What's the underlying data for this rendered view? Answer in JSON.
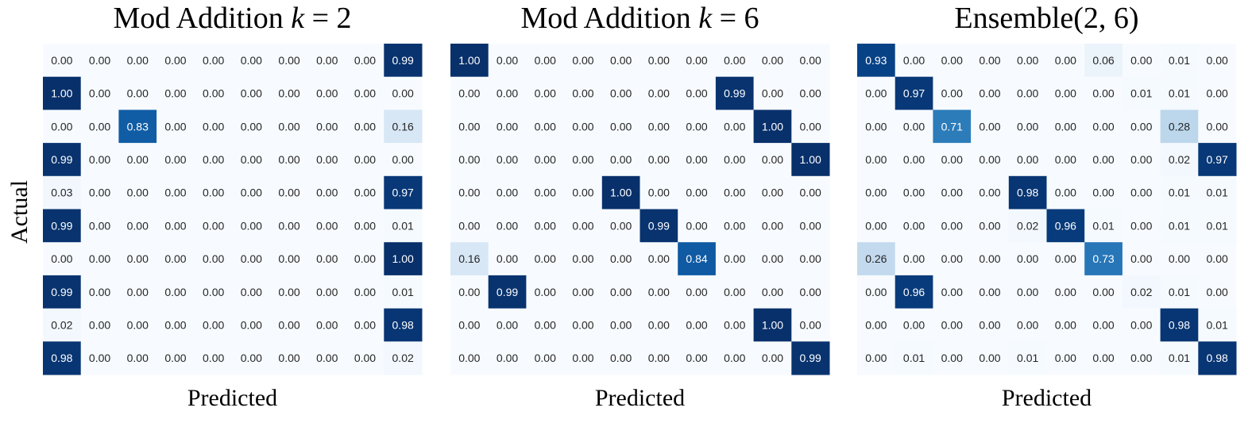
{
  "ylabel": "Actual",
  "colormap": {
    "name": "Blues",
    "low": "#f7fbff",
    "high": "#08306b",
    "text_dark": "#262626",
    "text_light": "#ffffff"
  },
  "chart_data": [
    {
      "type": "heatmap",
      "title": "Mod Addition k = 2",
      "title_plain": "Mod Addition ",
      "title_math": "k",
      "title_math_rest": " = 2",
      "xlabel": "Predicted",
      "ylabel": "Actual",
      "rows": 10,
      "cols": 10,
      "values": [
        [
          "0.00",
          "0.00",
          "0.00",
          "0.00",
          "0.00",
          "0.00",
          "0.00",
          "0.00",
          "0.00",
          "0.99"
        ],
        [
          "1.00",
          "0.00",
          "0.00",
          "0.00",
          "0.00",
          "0.00",
          "0.00",
          "0.00",
          "0.00",
          "0.00"
        ],
        [
          "0.00",
          "0.00",
          "0.83",
          "0.00",
          "0.00",
          "0.00",
          "0.00",
          "0.00",
          "0.00",
          "0.16"
        ],
        [
          "0.99",
          "0.00",
          "0.00",
          "0.00",
          "0.00",
          "0.00",
          "0.00",
          "0.00",
          "0.00",
          "0.00"
        ],
        [
          "0.03",
          "0.00",
          "0.00",
          "0.00",
          "0.00",
          "0.00",
          "0.00",
          "0.00",
          "0.00",
          "0.97"
        ],
        [
          "0.99",
          "0.00",
          "0.00",
          "0.00",
          "0.00",
          "0.00",
          "0.00",
          "0.00",
          "0.00",
          "0.01"
        ],
        [
          "0.00",
          "0.00",
          "0.00",
          "0.00",
          "0.00",
          "0.00",
          "0.00",
          "0.00",
          "0.00",
          "1.00"
        ],
        [
          "0.99",
          "0.00",
          "0.00",
          "0.00",
          "0.00",
          "0.00",
          "0.00",
          "0.00",
          "0.00",
          "0.01"
        ],
        [
          "0.02",
          "0.00",
          "0.00",
          "0.00",
          "0.00",
          "0.00",
          "0.00",
          "0.00",
          "0.00",
          "0.98"
        ],
        [
          "0.98",
          "0.00",
          "0.00",
          "0.00",
          "0.00",
          "0.00",
          "0.00",
          "0.00",
          "0.00",
          "0.02"
        ]
      ]
    },
    {
      "type": "heatmap",
      "title": "Mod Addition k = 6",
      "title_plain": "Mod Addition ",
      "title_math": "k",
      "title_math_rest": " = 6",
      "xlabel": "Predicted",
      "ylabel": "",
      "rows": 10,
      "cols": 10,
      "values": [
        [
          "1.00",
          "0.00",
          "0.00",
          "0.00",
          "0.00",
          "0.00",
          "0.00",
          "0.00",
          "0.00",
          "0.00"
        ],
        [
          "0.00",
          "0.00",
          "0.00",
          "0.00",
          "0.00",
          "0.00",
          "0.00",
          "0.99",
          "0.00",
          "0.00"
        ],
        [
          "0.00",
          "0.00",
          "0.00",
          "0.00",
          "0.00",
          "0.00",
          "0.00",
          "0.00",
          "1.00",
          "0.00"
        ],
        [
          "0.00",
          "0.00",
          "0.00",
          "0.00",
          "0.00",
          "0.00",
          "0.00",
          "0.00",
          "0.00",
          "1.00"
        ],
        [
          "0.00",
          "0.00",
          "0.00",
          "0.00",
          "1.00",
          "0.00",
          "0.00",
          "0.00",
          "0.00",
          "0.00"
        ],
        [
          "0.00",
          "0.00",
          "0.00",
          "0.00",
          "0.00",
          "0.99",
          "0.00",
          "0.00",
          "0.00",
          "0.00"
        ],
        [
          "0.16",
          "0.00",
          "0.00",
          "0.00",
          "0.00",
          "0.00",
          "0.84",
          "0.00",
          "0.00",
          "0.00"
        ],
        [
          "0.00",
          "0.99",
          "0.00",
          "0.00",
          "0.00",
          "0.00",
          "0.00",
          "0.00",
          "0.00",
          "0.00"
        ],
        [
          "0.00",
          "0.00",
          "0.00",
          "0.00",
          "0.00",
          "0.00",
          "0.00",
          "0.00",
          "1.00",
          "0.00"
        ],
        [
          "0.00",
          "0.00",
          "0.00",
          "0.00",
          "0.00",
          "0.00",
          "0.00",
          "0.00",
          "0.00",
          "0.99"
        ]
      ]
    },
    {
      "type": "heatmap",
      "title": "Ensemble(2, 6)",
      "title_plain": "Ensemble(2, 6)",
      "title_math": "",
      "title_math_rest": "",
      "xlabel": "Predicted",
      "ylabel": "",
      "rows": 10,
      "cols": 10,
      "values": [
        [
          "0.93",
          "0.00",
          "0.00",
          "0.00",
          "0.00",
          "0.00",
          "0.06",
          "0.00",
          "0.01",
          "0.00"
        ],
        [
          "0.00",
          "0.97",
          "0.00",
          "0.00",
          "0.00",
          "0.00",
          "0.00",
          "0.01",
          "0.01",
          "0.00"
        ],
        [
          "0.00",
          "0.00",
          "0.71",
          "0.00",
          "0.00",
          "0.00",
          "0.00",
          "0.00",
          "0.28",
          "0.00"
        ],
        [
          "0.00",
          "0.00",
          "0.00",
          "0.00",
          "0.00",
          "0.00",
          "0.00",
          "0.00",
          "0.02",
          "0.97"
        ],
        [
          "0.00",
          "0.00",
          "0.00",
          "0.00",
          "0.98",
          "0.00",
          "0.00",
          "0.00",
          "0.01",
          "0.01"
        ],
        [
          "0.00",
          "0.00",
          "0.00",
          "0.00",
          "0.02",
          "0.96",
          "0.01",
          "0.00",
          "0.01",
          "0.01"
        ],
        [
          "0.26",
          "0.00",
          "0.00",
          "0.00",
          "0.00",
          "0.00",
          "0.73",
          "0.00",
          "0.00",
          "0.00"
        ],
        [
          "0.00",
          "0.96",
          "0.00",
          "0.00",
          "0.00",
          "0.00",
          "0.00",
          "0.02",
          "0.01",
          "0.00"
        ],
        [
          "0.00",
          "0.00",
          "0.00",
          "0.00",
          "0.00",
          "0.00",
          "0.00",
          "0.00",
          "0.98",
          "0.01"
        ],
        [
          "0.00",
          "0.01",
          "0.00",
          "0.00",
          "0.01",
          "0.00",
          "0.00",
          "0.00",
          "0.01",
          "0.98"
        ]
      ]
    }
  ]
}
